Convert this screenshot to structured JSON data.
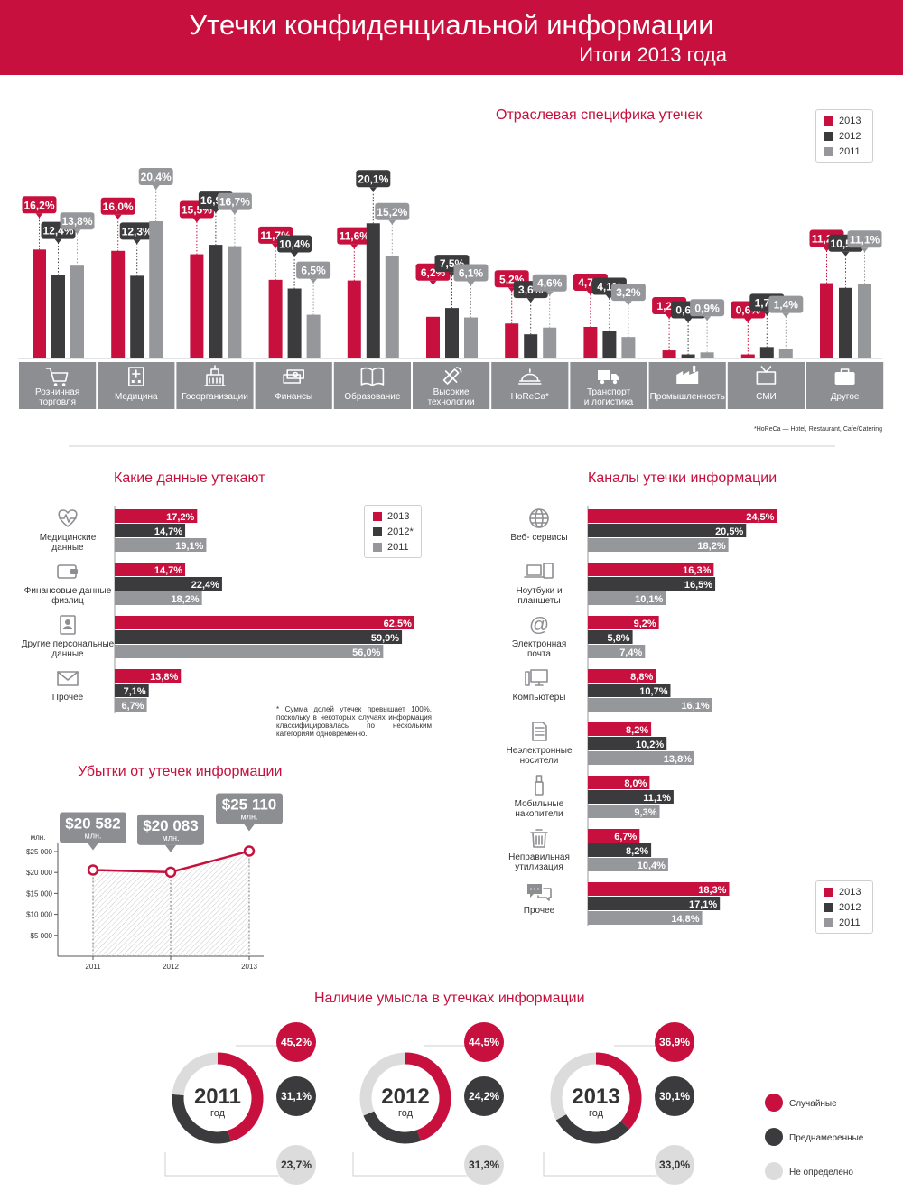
{
  "header": {
    "title": "Утечки конфиденциальной информации",
    "subtitle": "Итоги 2013 года"
  },
  "colors": {
    "y2013": "#c8103e",
    "y2012": "#3b3b3d",
    "y2011": "#96979b",
    "accent": "#c8103e",
    "light": "#dcdcdc"
  },
  "legend_years": [
    "2013",
    "2012",
    "2011"
  ],
  "legend_years_star": [
    "2013",
    "2012*",
    "2011"
  ],
  "industries": {
    "title": "Отраслевая специфика утечек",
    "footnote": "*HoReCa — Hotel, Restaurant, Cafe/Catering",
    "chart_data": {
      "type": "bar",
      "series_names": [
        "2013",
        "2012",
        "2011"
      ],
      "categories": [
        {
          "label": "Розничная торговля",
          "icon": "shopping-cart-icon",
          "values": [
            16.2,
            12.4,
            13.8
          ],
          "labels": [
            "16,2%",
            "12,4%",
            "13,8%"
          ]
        },
        {
          "label": "Медицина",
          "icon": "hospital-icon",
          "values": [
            16.0,
            12.3,
            20.4
          ],
          "labels": [
            "16,0%",
            "12,3%",
            "20,4%"
          ]
        },
        {
          "label": "Госорганизации",
          "icon": "government-building-icon",
          "values": [
            15.5,
            16.9,
            16.7
          ],
          "labels": [
            "15,5%",
            "16,9%",
            "16,7%"
          ]
        },
        {
          "label": "Финансы",
          "icon": "money-stack-icon",
          "values": [
            11.7,
            10.4,
            6.5
          ],
          "labels": [
            "11,7%",
            "10,4%",
            "6,5%"
          ]
        },
        {
          "label": "Образование",
          "icon": "book-icon",
          "values": [
            11.6,
            20.1,
            15.2
          ],
          "labels": [
            "11,6%",
            "20,1%",
            "15,2%"
          ]
        },
        {
          "label": "Высокие технологии",
          "icon": "satellite-icon",
          "values": [
            6.2,
            7.5,
            6.1
          ],
          "labels": [
            "6,2%",
            "7,5%",
            "6,1%"
          ]
        },
        {
          "label": "HoReCa*",
          "icon": "cloche-icon",
          "values": [
            5.2,
            3.6,
            4.6
          ],
          "labels": [
            "5,2%",
            "3,6%",
            "4,6%"
          ]
        },
        {
          "label": "Транспорт и логистика",
          "icon": "truck-icon",
          "values": [
            4.7,
            4.1,
            3.2
          ],
          "labels": [
            "4,7%",
            "4,1%",
            "3,2%"
          ]
        },
        {
          "label": "Промышленность",
          "icon": "factory-icon",
          "values": [
            1.2,
            0.6,
            0.9
          ],
          "labels": [
            "1,2%",
            "0,6%",
            "0,9%"
          ]
        },
        {
          "label": "СМИ",
          "icon": "tv-icon",
          "values": [
            0.6,
            1.7,
            1.4
          ],
          "labels": [
            "0,6%",
            "1,7%",
            "1,4%"
          ]
        },
        {
          "label": "Другое",
          "icon": "briefcase-icon",
          "values": [
            11.2,
            10.5,
            11.1
          ],
          "labels": [
            "11,2%",
            "10,5%",
            "11,1%"
          ]
        }
      ]
    }
  },
  "data_types": {
    "title": "Какие данные утекают",
    "note": "* Сумма долей утечек превышает 100%, поскольку в некоторых случаях информация классифицировалась по нескольким категориям одновременно.",
    "chart_data": {
      "type": "bar",
      "orientation": "horizontal",
      "series_names": [
        "2013",
        "2012*",
        "2011"
      ],
      "categories": [
        {
          "label": "Медицинские данные",
          "icon": "heartbeat-icon",
          "values": [
            17.2,
            14.7,
            19.1
          ],
          "labels": [
            "17,2%",
            "14,7%",
            "19,1%"
          ]
        },
        {
          "label": "Финансовые данные физлиц",
          "icon": "wallet-icon",
          "values": [
            14.7,
            22.4,
            18.2
          ],
          "labels": [
            "14,7%",
            "22,4%",
            "18,2%"
          ]
        },
        {
          "label": "Другие персональные данные",
          "icon": "id-badge-icon",
          "values": [
            62.5,
            59.9,
            56.0
          ],
          "labels": [
            "62,5%",
            "59,9%",
            "56,0%"
          ]
        },
        {
          "label": "Прочее",
          "icon": "envelope-icon",
          "values": [
            13.8,
            7.1,
            6.7
          ],
          "labels": [
            "13,8%",
            "7,1%",
            "6,7%"
          ]
        }
      ]
    }
  },
  "channels": {
    "title": "Каналы утечки информации",
    "chart_data": {
      "type": "bar",
      "orientation": "horizontal",
      "series_names": [
        "2013",
        "2012",
        "2011"
      ],
      "categories": [
        {
          "label": "Веб- сервисы",
          "icon": "globe-icon",
          "values": [
            24.5,
            20.5,
            18.2
          ],
          "labels": [
            "24,5%",
            "20,5%",
            "18,2%"
          ]
        },
        {
          "label": "Ноутбуки и планшеты",
          "icon": "laptop-tablet-icon",
          "values": [
            16.3,
            16.5,
            10.1
          ],
          "labels": [
            "16,3%",
            "16,5%",
            "10,1%"
          ]
        },
        {
          "label": "Электронная почта",
          "icon": "at-sign-icon",
          "values": [
            9.2,
            5.8,
            7.4
          ],
          "labels": [
            "9,2%",
            "5,8%",
            "7,4%"
          ]
        },
        {
          "label": "Компьютеры",
          "icon": "desktop-computer-icon",
          "values": [
            8.8,
            10.7,
            16.1
          ],
          "labels": [
            "8,8%",
            "10,7%",
            "16,1%"
          ]
        },
        {
          "label": "Неэлектронные носители",
          "icon": "paper-document-icon",
          "values": [
            8.2,
            10.2,
            13.8
          ],
          "labels": [
            "8,2%",
            "10,2%",
            "13,8%"
          ]
        },
        {
          "label": "Мобильные накопители",
          "icon": "usb-drive-icon",
          "values": [
            8.0,
            11.1,
            9.3
          ],
          "labels": [
            "8,0%",
            "11,1%",
            "9,3%"
          ]
        },
        {
          "label": "Неправильная утилизация",
          "icon": "trash-bin-icon",
          "values": [
            6.7,
            8.2,
            10.4
          ],
          "labels": [
            "6,7%",
            "8,2%",
            "10,4%"
          ]
        },
        {
          "label": "Прочее",
          "icon": "chat-bubbles-icon",
          "values": [
            18.3,
            17.1,
            14.8
          ],
          "labels": [
            "18,3%",
            "17,1%",
            "14,8%"
          ]
        }
      ]
    }
  },
  "losses": {
    "title": "Убытки от утечек информации",
    "chart_data": {
      "type": "line",
      "x": [
        "2011",
        "2012",
        "2013"
      ],
      "values": [
        20582,
        20083,
        25110
      ],
      "value_labels": [
        "$20 582",
        "$20 083",
        "$25 110"
      ],
      "value_unit": "млн.",
      "ylabel": "млн.",
      "ylim": [
        0,
        25000
      ],
      "yticks": [
        "$25 000",
        "$20 000",
        "$15 000",
        "$10 000",
        "$5 000"
      ],
      "ytick_values": [
        25000,
        20000,
        15000,
        10000,
        5000
      ]
    }
  },
  "intent": {
    "title": "Наличие умысла в утечках информации",
    "year_sub": "год",
    "legend": [
      "Случайные",
      "Преднамеренные",
      "Не определено"
    ],
    "chart_data": {
      "type": "pie",
      "categories": [
        "Случайные",
        "Преднамеренные",
        "Не определено"
      ],
      "charts": [
        {
          "year": "2011",
          "values": [
            45.2,
            31.1,
            23.7
          ],
          "labels": [
            "45,2%",
            "31,1%",
            "23,7%"
          ]
        },
        {
          "year": "2012",
          "values": [
            44.5,
            24.2,
            31.3
          ],
          "labels": [
            "44,5%",
            "24,2%",
            "31,3%"
          ]
        },
        {
          "year": "2013",
          "values": [
            36.9,
            30.1,
            33.0
          ],
          "labels": [
            "36,9%",
            "30,1%",
            "33,0%"
          ]
        }
      ]
    }
  }
}
